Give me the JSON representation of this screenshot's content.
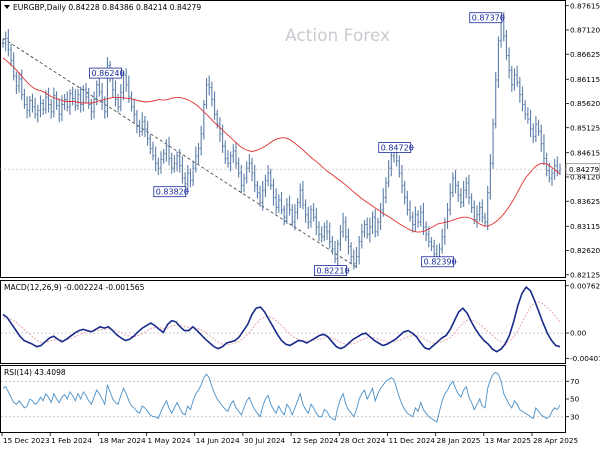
{
  "chart_data": {
    "type": "line",
    "header": "EURGBP,Daily  0.84228 0.84386 0.84214 0.84279",
    "watermark": "Action Forex",
    "symbol": "EURGBP",
    "timeframe": "Daily",
    "ohlc_readout": {
      "open": 0.84228,
      "high": 0.84386,
      "low": 0.84214,
      "close": 0.84279
    },
    "last_price_label": "0.84279",
    "x_labels": [
      "15 Dec 2023",
      "1 Feb 2024",
      "18 Mar 2024",
      "1 May 2024",
      "14 Jun 2024",
      "30 Jul 2024",
      "12 Sep 2024",
      "28 Oct 2024",
      "11 Dec 2024",
      "28 Jan 2025",
      "13 Mar 2025",
      "28 Apr 2025"
    ],
    "price_panel": {
      "ylim": [
        0.8212,
        0.8765
      ],
      "y_ticks": [
        "0.87615",
        "0.87120",
        "0.86625",
        "0.86115",
        "0.85620",
        "0.85125",
        "0.84615",
        "0.84120",
        "0.83625",
        "0.83115",
        "0.82620",
        "0.82125"
      ],
      "y_tick_values": [
        0.87615,
        0.8712,
        0.86625,
        0.86115,
        0.8562,
        0.85125,
        0.84615,
        0.8412,
        0.83625,
        0.83115,
        0.8262,
        0.82125
      ],
      "close_series": [
        0.8685,
        0.8695,
        0.8672,
        0.865,
        0.8618,
        0.8598,
        0.8612,
        0.858,
        0.856,
        0.8548,
        0.8568,
        0.8555,
        0.854,
        0.8548,
        0.8562,
        0.855,
        0.8575,
        0.856,
        0.8545,
        0.8578,
        0.8558,
        0.854,
        0.856,
        0.857,
        0.8555,
        0.8582,
        0.8572,
        0.8558,
        0.858,
        0.856,
        0.859,
        0.8575,
        0.856,
        0.8545,
        0.857,
        0.86,
        0.8585,
        0.8565,
        0.8545,
        0.864,
        0.8615,
        0.859,
        0.857,
        0.8555,
        0.8585,
        0.862,
        0.86,
        0.8575,
        0.8555,
        0.854,
        0.8515,
        0.8505,
        0.8525,
        0.851,
        0.849,
        0.847,
        0.8455,
        0.844,
        0.843,
        0.8448,
        0.846,
        0.8475,
        0.845,
        0.843,
        0.844,
        0.8455,
        0.8435,
        0.841,
        0.8398,
        0.842,
        0.8405,
        0.843,
        0.8455,
        0.847,
        0.85,
        0.856,
        0.86,
        0.8595,
        0.857,
        0.854,
        0.852,
        0.85,
        0.8475,
        0.845,
        0.844,
        0.8455,
        0.8465,
        0.844,
        0.842,
        0.8395,
        0.841,
        0.843,
        0.844,
        0.842,
        0.8395,
        0.838,
        0.836,
        0.8385,
        0.8405,
        0.842,
        0.8395,
        0.837,
        0.835,
        0.8365,
        0.8345,
        0.833,
        0.8355,
        0.8345,
        0.832,
        0.834,
        0.836,
        0.8385,
        0.8355,
        0.8335,
        0.832,
        0.8345,
        0.833,
        0.831,
        0.8295,
        0.829,
        0.831,
        0.83,
        0.828,
        0.8265,
        0.8245,
        0.8275,
        0.83,
        0.832,
        0.829,
        0.827,
        0.825,
        0.8235,
        0.825,
        0.828,
        0.83,
        0.8315,
        0.8295,
        0.831,
        0.833,
        0.83,
        0.832,
        0.8345,
        0.837,
        0.84,
        0.843,
        0.8455,
        0.8462,
        0.8445,
        0.842,
        0.8395,
        0.837,
        0.8345,
        0.833,
        0.8315,
        0.8335,
        0.832,
        0.834,
        0.831,
        0.8295,
        0.828,
        0.827,
        0.8255,
        0.8245,
        0.8265,
        0.829,
        0.832,
        0.8345,
        0.838,
        0.841,
        0.8395,
        0.8375,
        0.836,
        0.8385,
        0.84,
        0.837,
        0.835,
        0.8325,
        0.8335,
        0.835,
        0.833,
        0.832,
        0.838,
        0.844,
        0.852,
        0.861,
        0.869,
        0.873,
        0.87,
        0.866,
        0.863,
        0.86,
        0.862,
        0.8605,
        0.858,
        0.856,
        0.854,
        0.853,
        0.851,
        0.8495,
        0.852,
        0.8505,
        0.848,
        0.845,
        0.8425,
        0.841,
        0.842,
        0.8435,
        0.8425,
        0.8428
      ],
      "ma_series": [
        0.8655,
        0.8648,
        0.864,
        0.8632,
        0.8622,
        0.8612,
        0.8603,
        0.8595,
        0.859,
        0.8588,
        0.8584,
        0.8578,
        0.8574,
        0.8571,
        0.8568,
        0.8566,
        0.8566,
        0.8566,
        0.8564,
        0.8563,
        0.8563,
        0.8563,
        0.8565,
        0.8568,
        0.857,
        0.8572,
        0.8574,
        0.8574,
        0.8574,
        0.8573,
        0.8572,
        0.857,
        0.8568,
        0.8566,
        0.8565,
        0.8566,
        0.8568,
        0.857,
        0.8569,
        0.857,
        0.8573,
        0.8574,
        0.8574,
        0.8572,
        0.8569,
        0.8564,
        0.8558,
        0.855,
        0.8542,
        0.8533,
        0.8524,
        0.8516,
        0.8508,
        0.85,
        0.8492,
        0.8484,
        0.8476,
        0.847,
        0.8466,
        0.8464,
        0.8466,
        0.847,
        0.8474,
        0.848,
        0.8486,
        0.849,
        0.8492,
        0.8492,
        0.8488,
        0.8482,
        0.8475,
        0.8468,
        0.846,
        0.8452,
        0.8445,
        0.8438,
        0.843,
        0.8423,
        0.8417,
        0.841,
        0.8404,
        0.8397,
        0.839,
        0.8382,
        0.8375,
        0.8368,
        0.8362,
        0.8356,
        0.835,
        0.8344,
        0.8338,
        0.8333,
        0.8328,
        0.8322,
        0.8316,
        0.8311,
        0.8306,
        0.8302,
        0.83,
        0.83,
        0.8302,
        0.8306,
        0.8311,
        0.8316,
        0.8318,
        0.832,
        0.8322,
        0.8325,
        0.8328,
        0.833,
        0.833,
        0.8327,
        0.8322,
        0.8316,
        0.8312,
        0.8312,
        0.8316,
        0.8322,
        0.833,
        0.834,
        0.8352,
        0.8366,
        0.8382,
        0.8398,
        0.8412,
        0.8422,
        0.8432,
        0.8438,
        0.844,
        0.8438,
        0.8432,
        0.8425,
        0.8418
      ],
      "annotations": [
        {
          "text": "0.86240",
          "index": 45,
          "value": 0.8624,
          "side": "left"
        },
        {
          "text": "0.83820",
          "index": 69,
          "value": 0.8382,
          "side": "left"
        },
        {
          "text": "0.82210",
          "index": 129,
          "value": 0.8221,
          "side": "left"
        },
        {
          "text": "0.84720",
          "index": 153,
          "value": 0.8472,
          "side": "left"
        },
        {
          "text": "0.82390",
          "index": 169,
          "value": 0.8239,
          "side": "left"
        },
        {
          "text": "0.87370",
          "index": 187,
          "value": 0.8737,
          "side": "left"
        }
      ],
      "trendline": {
        "from_index": 0,
        "from_value": 0.8695,
        "to_index": 132,
        "to_value": 0.8228
      }
    },
    "macd_panel": {
      "label": "MACD(12,26,9) -0.002224 -0.001565",
      "ylim": [
        -0.0045,
        0.0079
      ],
      "y_ticks": [
        "0.007623",
        "0.00",
        "-0.004073"
      ],
      "y_tick_values": [
        0.007623,
        0.0,
        -0.004073
      ],
      "zero_line": 0.0,
      "macd": [
        0.003,
        0.0025,
        0.0015,
        0.0005,
        -0.0005,
        -0.0012,
        -0.0015,
        -0.0018,
        -0.0022,
        -0.002,
        -0.0014,
        -0.0008,
        -0.0005,
        -0.001,
        -0.0014,
        -0.001,
        -0.0005,
        0.0,
        0.0004,
        0.0006,
        0.0004,
        0.0002,
        0.0006,
        0.001,
        0.0008,
        0.001,
        0.0004,
        -0.0003,
        -0.0008,
        -0.0012,
        -0.001,
        -0.0005,
        0.0002,
        0.0008,
        0.0012,
        0.0016,
        0.0012,
        0.0006,
        0.0001,
        0.0014,
        0.002,
        0.0018,
        0.001,
        0.0004,
        0.0004,
        0.001,
        0.0004,
        -0.0003,
        -0.001,
        -0.0016,
        -0.0022,
        -0.0025,
        -0.0022,
        -0.0016,
        -0.0014,
        -0.0012,
        -0.0006,
        0.0004,
        0.0014,
        0.003,
        0.004,
        0.0042,
        0.0034,
        0.0022,
        0.001,
        -0.0002,
        -0.0012,
        -0.0018,
        -0.002,
        -0.0016,
        -0.0012,
        -0.0013,
        -0.0016,
        -0.0012,
        -0.0008,
        -0.0004,
        -0.0002,
        -0.0006,
        -0.0014,
        -0.0022,
        -0.0025,
        -0.0022,
        -0.0016,
        -0.001,
        -0.0006,
        -0.0002,
        0.0,
        -0.0006,
        -0.0012,
        -0.0016,
        -0.002,
        -0.0018,
        -0.0014,
        -0.001,
        -0.0004,
        0.0002,
        0.0004,
        0.0,
        -0.0006,
        -0.0016,
        -0.0024,
        -0.0026,
        -0.002,
        -0.0014,
        -0.0008,
        -0.0004,
        0.0006,
        0.002,
        0.0034,
        0.004,
        0.0032,
        0.0018,
        0.0006,
        -0.0004,
        -0.0012,
        -0.0018,
        -0.0026,
        -0.003,
        -0.0026,
        -0.0018,
        -0.0004,
        0.0018,
        0.0044,
        0.0064,
        0.0074,
        0.0068,
        0.0052,
        0.0034,
        0.0016,
        0.0,
        -0.0012,
        -0.002,
        -0.0022
      ],
      "signal": [
        0.0026,
        0.0025,
        0.0022,
        0.0018,
        0.0012,
        0.0006,
        0.0,
        -0.0006,
        -0.0012,
        -0.0015,
        -0.0015,
        -0.0013,
        -0.0011,
        -0.001,
        -0.0011,
        -0.0011,
        -0.0009,
        -0.0006,
        -0.0003,
        0.0,
        0.0002,
        0.0003,
        0.0004,
        0.0005,
        0.0006,
        0.0007,
        0.0006,
        0.0004,
        0.0001,
        -0.0003,
        -0.0005,
        -0.0006,
        -0.0004,
        -0.0001,
        0.0003,
        0.0007,
        0.0009,
        0.0009,
        0.0007,
        0.0008,
        0.0011,
        0.0013,
        0.0013,
        0.0011,
        0.0009,
        0.0009,
        0.0008,
        0.0005,
        0.0001,
        -0.0004,
        -0.001,
        -0.0015,
        -0.0018,
        -0.0019,
        -0.0018,
        -0.0016,
        -0.0013,
        -0.0008,
        -0.0002,
        0.0006,
        0.0015,
        0.0022,
        0.0026,
        0.0027,
        0.0024,
        0.0019,
        0.0012,
        0.0005,
        -0.0002,
        -0.0007,
        -0.001,
        -0.0012,
        -0.0013,
        -0.0013,
        -0.0012,
        -0.001,
        -0.0008,
        -0.0007,
        -0.0008,
        -0.0011,
        -0.0015,
        -0.0018,
        -0.0018,
        -0.0017,
        -0.0014,
        -0.0011,
        -0.0008,
        -0.0007,
        -0.0008,
        -0.001,
        -0.0012,
        -0.0014,
        -0.0014,
        -0.0014,
        -0.0012,
        -0.0009,
        -0.0006,
        -0.0004,
        -0.0004,
        -0.0006,
        -0.001,
        -0.0014,
        -0.0016,
        -0.0016,
        -0.0014,
        -0.0011,
        -0.0007,
        -0.0001,
        0.0008,
        0.0016,
        0.0021,
        0.0022,
        0.0019,
        0.0014,
        0.0008,
        0.0002,
        -0.0004,
        -0.001,
        -0.0014,
        -0.0015,
        -0.0013,
        -0.0006,
        0.0004,
        0.0017,
        0.003,
        0.0042,
        0.0049,
        0.005,
        0.0047,
        0.0041,
        0.0034,
        0.0026,
        0.0018
      ]
    },
    "rsi_panel": {
      "label": "RSI(14) 43.4098",
      "ylim": [
        15,
        85
      ],
      "y_ticks": [
        "70",
        "50",
        "30"
      ],
      "y_tick_values": [
        70,
        50,
        30
      ],
      "series": [
        62,
        64,
        58,
        52,
        46,
        44,
        48,
        44,
        40,
        42,
        50,
        48,
        44,
        46,
        52,
        48,
        56,
        52,
        46,
        56,
        50,
        46,
        52,
        55,
        50,
        58,
        54,
        48,
        56,
        50,
        58,
        54,
        48,
        44,
        52,
        60,
        56,
        50,
        44,
        66,
        58,
        50,
        46,
        44,
        54,
        62,
        56,
        48,
        42,
        40,
        36,
        34,
        42,
        40,
        36,
        32,
        30,
        30,
        28,
        36,
        42,
        48,
        40,
        34,
        40,
        46,
        40,
        34,
        32,
        42,
        38,
        48,
        56,
        60,
        66,
        74,
        78,
        74,
        64,
        56,
        50,
        46,
        42,
        38,
        36,
        44,
        48,
        40,
        36,
        32,
        40,
        48,
        52,
        44,
        38,
        34,
        30,
        42,
        50,
        54,
        44,
        38,
        34,
        42,
        36,
        32,
        44,
        40,
        32,
        40,
        48,
        56,
        44,
        38,
        34,
        44,
        40,
        34,
        30,
        30,
        38,
        36,
        30,
        28,
        26,
        40,
        50,
        56,
        44,
        38,
        34,
        30,
        38,
        50,
        56,
        60,
        50,
        56,
        62,
        48,
        56,
        62,
        66,
        70,
        72,
        74,
        72,
        62,
        52,
        44,
        38,
        34,
        32,
        30,
        40,
        36,
        46,
        38,
        34,
        30,
        28,
        26,
        24,
        36,
        48,
        56,
        60,
        66,
        70,
        62,
        56,
        52,
        60,
        64,
        52,
        46,
        38,
        44,
        50,
        42,
        40,
        62,
        72,
        78,
        80,
        78,
        70,
        56,
        50,
        44,
        40,
        48,
        44,
        38,
        36,
        34,
        32,
        30,
        28,
        40,
        36,
        32,
        30,
        28,
        30,
        36,
        40,
        38,
        43
      ]
    }
  }
}
